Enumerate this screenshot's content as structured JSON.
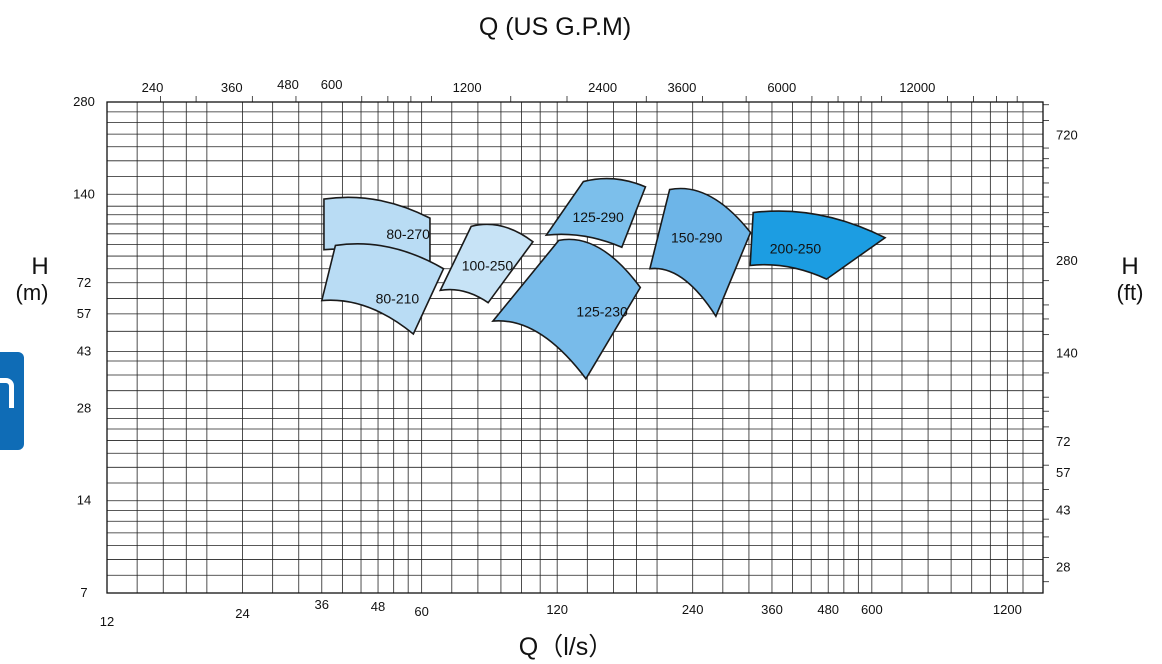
{
  "chart_data": {
    "type": "area",
    "title": "",
    "top_axis_label": "Q (US G.P.M)",
    "bottom_axis_label": "Q（l/s）",
    "left_axis_label_line1": "H",
    "left_axis_label_line2": "(m)",
    "right_axis_label_line1": "H",
    "right_axis_label_line2": "(ft)",
    "x_scale": "log",
    "y_scale": "log",
    "xlim": [
      12,
      1440
    ],
    "ylim": [
      7,
      280
    ],
    "grid": true,
    "bottom_ticks": [
      "12",
      "24",
      "36",
      "48",
      "60",
      "120",
      "240",
      "360",
      "480",
      "600",
      "1200"
    ],
    "top_ticks": [
      "240",
      "360",
      "480",
      "600",
      "1200",
      "2400",
      "3600",
      "6000",
      "12000"
    ],
    "left_ticks": [
      "7",
      "14",
      "28",
      "43",
      "57",
      "72",
      "140",
      "280"
    ],
    "right_ticks": [
      "28",
      "43",
      "57",
      "72",
      "140",
      "280",
      "720"
    ],
    "regions": [
      {
        "name": "80-270",
        "color": "#b9dcf4",
        "label_at": [
          56,
          104
        ],
        "corners": [
          [
            36.4,
            135
          ],
          [
            62.6,
            117
          ],
          [
            62.6,
            80.2
          ],
          [
            36.4,
            92.3
          ]
        ]
      },
      {
        "name": "80-210",
        "color": "#b9dcf4",
        "label_at": [
          53,
          64
        ],
        "corners": [
          [
            38.6,
            95.3
          ],
          [
            67.1,
            80
          ],
          [
            57.5,
            49
          ],
          [
            36,
            63
          ]
        ]
      },
      {
        "name": "100-250",
        "color": "#c7e3f6",
        "label_at": [
          84,
          82
        ],
        "corners": [
          [
            77.3,
            110
          ],
          [
            106,
            98
          ],
          [
            84.3,
            62
          ],
          [
            66,
            68
          ]
        ]
      },
      {
        "name": "125-290",
        "color": "#7cbfeb",
        "label_at": [
          148,
          118
        ],
        "corners": [
          [
            137.2,
            154
          ],
          [
            188.5,
            148
          ],
          [
            167,
            94
          ],
          [
            113.5,
            103
          ]
        ]
      },
      {
        "name": "125-230",
        "color": "#78bbea",
        "label_at": [
          151,
          58
        ],
        "corners": [
          [
            121,
            99
          ],
          [
            183.6,
            69.5
          ],
          [
            139,
            35
          ],
          [
            86.4,
            54
          ]
        ]
      },
      {
        "name": "150-290",
        "color": "#6db5e8",
        "label_at": [
          245,
          101
        ],
        "corners": [
          [
            213.3,
            145
          ],
          [
            322.6,
            105
          ],
          [
            270.2,
            56
          ],
          [
            192.8,
            80
          ]
        ]
      },
      {
        "name": "200-250",
        "color": "#1c9de2",
        "label_at": [
          406,
          93
        ],
        "corners": [
          [
            327,
            122
          ],
          [
            642,
            101
          ],
          [
            476,
            74
          ],
          [
            322,
            82
          ]
        ]
      }
    ]
  }
}
